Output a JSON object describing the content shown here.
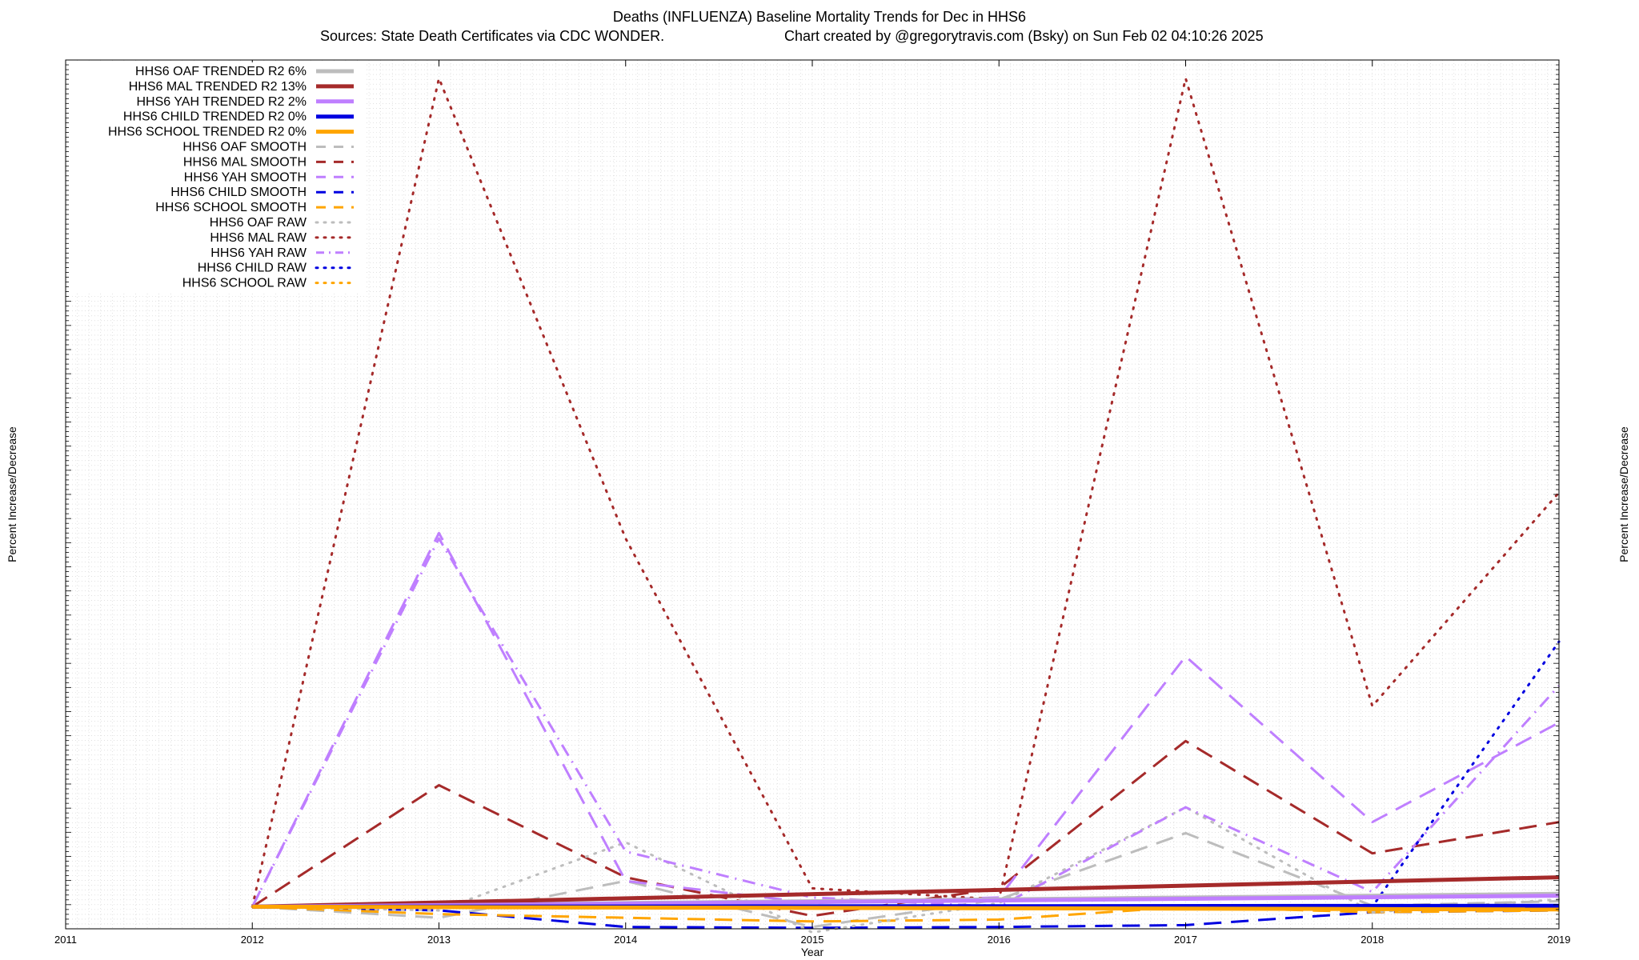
{
  "chart_data": {
    "type": "line",
    "title": "Deaths (INFLUENZA)  Baseline Mortality Trends for Dec in HHS6",
    "subtitle_left": "Sources: State Death Certificates via CDC WONDER.",
    "subtitle_right": "Chart created by @gregorytravis.com (Bsky) on Sun Feb 02 04:10:26 2025",
    "xlabel": "Year",
    "ylabel": "Percent Increase/Decrease",
    "ylabel_right": "Percent Increase/Decrease",
    "x_ticks": [
      "2011",
      "2012",
      "2013",
      "2014",
      "2015",
      "2016",
      "2017",
      "2018",
      "2019"
    ],
    "xlim": [
      2011,
      2019
    ],
    "ylim": [
      -120,
      4600
    ],
    "grid": true,
    "legend_position": "top-left",
    "series": [
      {
        "name": "HHS6 OAF TRENDED R2  6%",
        "style": "solid",
        "color": "#bdbdbd",
        "width": 5,
        "x": [
          2012,
          2019
        ],
        "y": [
          0,
          70
        ]
      },
      {
        "name": "HHS6 MAL TRENDED R2  13%",
        "style": "solid",
        "color": "#a52a2a",
        "width": 5,
        "x": [
          2012,
          2019
        ],
        "y": [
          0,
          160
        ]
      },
      {
        "name": "HHS6 YAH TRENDED R2   2%",
        "style": "solid",
        "color": "#bf7fff",
        "width": 5,
        "x": [
          2012,
          2019
        ],
        "y": [
          0,
          60
        ]
      },
      {
        "name": "HHS6 CHILD TRENDED R2   0%",
        "style": "solid",
        "color": "#0000e0",
        "width": 5,
        "x": [
          2012,
          2019
        ],
        "y": [
          0,
          5
        ]
      },
      {
        "name": "HHS6 SCHOOL TRENDED R2   0%",
        "style": "solid",
        "color": "#ffa500",
        "width": 5,
        "x": [
          2012,
          2019
        ],
        "y": [
          0,
          -15
        ]
      },
      {
        "name": "HHS6 OAF SMOOTH",
        "style": "dash",
        "color": "#bdbdbd",
        "width": 3,
        "x": [
          2012,
          2013,
          2014,
          2015,
          2016,
          2017,
          2018,
          2019
        ],
        "y": [
          0,
          -60,
          140,
          -110,
          40,
          400,
          5,
          30
        ]
      },
      {
        "name": "HHS6 MAL SMOOTH",
        "style": "dash",
        "color": "#a52a2a",
        "width": 3,
        "x": [
          2012,
          2013,
          2014,
          2015,
          2016,
          2017,
          2018,
          2019
        ],
        "y": [
          0,
          660,
          160,
          -50,
          100,
          900,
          290,
          460
        ]
      },
      {
        "name": "HHS6 YAH SMOOTH",
        "style": "dash",
        "color": "#bf7fff",
        "width": 3,
        "x": [
          2012,
          2013,
          2014,
          2015,
          2016,
          2017,
          2018,
          2019
        ],
        "y": [
          0,
          2030,
          140,
          20,
          50,
          1360,
          460,
          1000
        ]
      },
      {
        "name": "HHS6 CHILD SMOOTH",
        "style": "dash",
        "color": "#0000e0",
        "width": 3,
        "x": [
          2012,
          2013,
          2014,
          2015,
          2016,
          2017,
          2018,
          2019
        ],
        "y": [
          0,
          -20,
          -110,
          -115,
          -110,
          -100,
          -30,
          -20
        ]
      },
      {
        "name": "HHS6 SCHOOL SMOOTH",
        "style": "dash",
        "color": "#ffa500",
        "width": 3,
        "x": [
          2012,
          2013,
          2014,
          2015,
          2016,
          2017,
          2018,
          2019
        ],
        "y": [
          0,
          -40,
          -60,
          -80,
          -70,
          0,
          -30,
          -20
        ]
      },
      {
        "name": "HHS6 OAF RAW",
        "style": "dot",
        "color": "#bdbdbd",
        "width": 3,
        "x": [
          2012,
          2013,
          2014,
          2015,
          2016,
          2017,
          2018,
          2019
        ],
        "y": [
          0,
          -20,
          350,
          -140,
          20,
          540,
          -30,
          40
        ]
      },
      {
        "name": "HHS6 MAL RAW",
        "style": "dot",
        "color": "#a52a2a",
        "width": 3,
        "x": [
          2012,
          2013,
          2014,
          2015,
          2016,
          2017,
          2018,
          2019
        ],
        "y": [
          0,
          4500,
          2000,
          100,
          40,
          4500,
          1090,
          2250
        ]
      },
      {
        "name": "HHS6 YAH RAW",
        "style": "dashdot",
        "color": "#bf7fff",
        "width": 3,
        "x": [
          2012,
          2013,
          2014,
          2015,
          2016,
          2017,
          2018,
          2019
        ],
        "y": [
          0,
          2000,
          300,
          50,
          0,
          540,
          80,
          1200
        ]
      },
      {
        "name": "HHS6 CHILD RAW",
        "style": "dot",
        "color": "#0000e0",
        "width": 3,
        "x": [
          2012,
          2013,
          2014,
          2015,
          2016,
          2017,
          2018,
          2019
        ],
        "y": [
          0,
          0,
          0,
          0,
          0,
          0,
          0,
          1440
        ]
      },
      {
        "name": "HHS6 SCHOOL RAW",
        "style": "dot",
        "color": "#ffa500",
        "width": 3,
        "x": [
          2012,
          2013,
          2014,
          2015,
          2016,
          2017,
          2018,
          2019
        ],
        "y": [
          0,
          0,
          0,
          0,
          0,
          0,
          0,
          0
        ]
      }
    ]
  }
}
